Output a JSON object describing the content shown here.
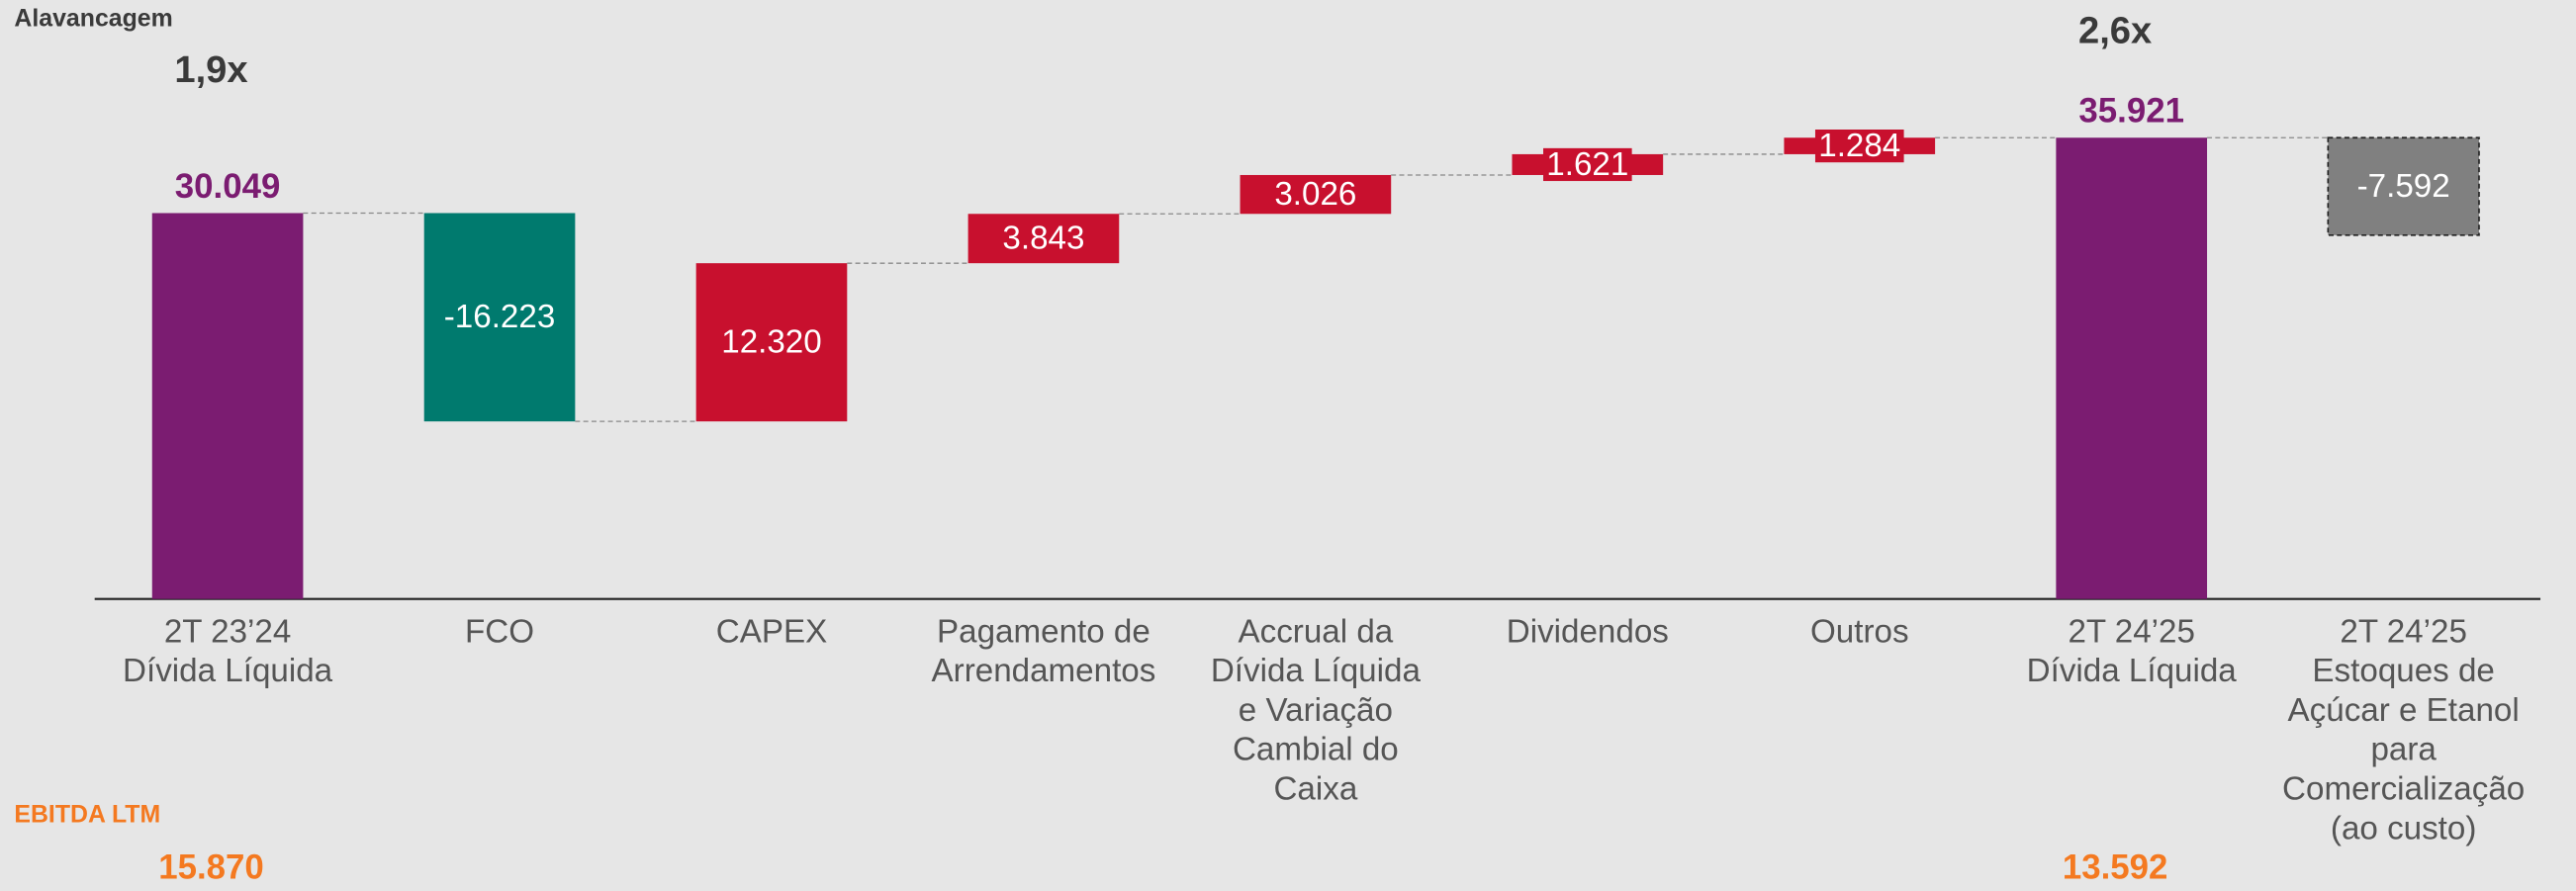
{
  "chart_data": {
    "type": "waterfall",
    "title": "Alavancagem",
    "categories": [
      [
        "2T 23’24",
        "Dívida Líquida"
      ],
      [
        "FCO"
      ],
      [
        "CAPEX"
      ],
      [
        "Pagamento de",
        "Arrendamentos"
      ],
      [
        "Accrual da",
        "Dívida Líquida",
        "e Variação",
        "Cambial do",
        "Caixa"
      ],
      [
        "Dividendos"
      ],
      [
        "Outros"
      ],
      [
        "2T 24’25",
        "Dívida Líquida"
      ],
      [
        "2T 24’25",
        "Estoques de",
        "Açúcar e Etanol",
        "para",
        "Comercialização",
        "(ao custo)"
      ]
    ],
    "values": [
      30049,
      -16223,
      12320,
      3843,
      3026,
      1621,
      1284,
      35921,
      -7592
    ],
    "value_labels": [
      "30.049",
      "-16.223",
      "12.320",
      "3.843",
      "3.026",
      "1.621",
      "1.284",
      "35.921",
      "-7.592"
    ],
    "measure": [
      "total",
      "relative",
      "relative",
      "relative",
      "relative",
      "relative",
      "relative",
      "total",
      "relative"
    ],
    "colors": [
      "#7b1c71",
      "#007a6e",
      "#c8102e",
      "#c8102e",
      "#c8102e",
      "#c8102e",
      "#c8102e",
      "#7b1c71",
      "#808080"
    ],
    "leverage": [
      "1,9x",
      null,
      null,
      null,
      null,
      null,
      null,
      "2,6x",
      null
    ],
    "ebitda_title": "EBITDA LTM",
    "ebitda": [
      "15.870",
      null,
      null,
      null,
      null,
      null,
      null,
      "13.592",
      null
    ],
    "ylim": [
      0,
      40000
    ]
  }
}
